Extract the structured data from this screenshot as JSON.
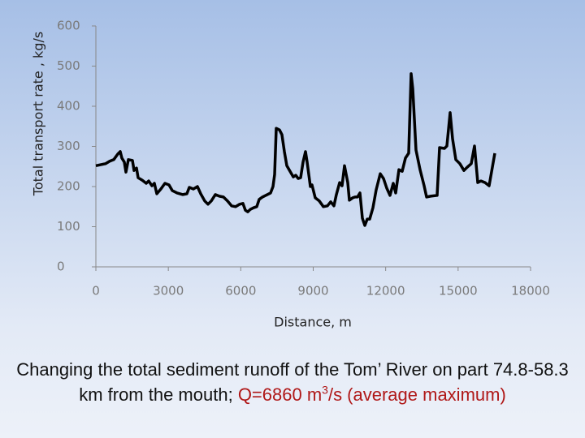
{
  "chart_data": {
    "type": "line",
    "x_label": "Distance, m",
    "y_label": "Total transport rate , kg/s",
    "xlim": [
      0,
      18000
    ],
    "xticks": [
      0,
      3000,
      6000,
      9000,
      12000,
      15000,
      18000
    ],
    "ylim": [
      0,
      600
    ],
    "yticks": [
      0,
      100,
      200,
      300,
      400,
      500,
      600
    ],
    "color": "#000000",
    "x": [
      0,
      235,
      404,
      572,
      740,
      908,
      1009,
      1077,
      1178,
      1245,
      1346,
      1514,
      1581,
      1682,
      1750,
      1918,
      2086,
      2187,
      2321,
      2422,
      2523,
      2692,
      2860,
      3028,
      3163,
      3365,
      3600,
      3768,
      3869,
      4037,
      4205,
      4340,
      4508,
      4643,
      4778,
      4946,
      5114,
      5282,
      5450,
      5618,
      5787,
      5955,
      6090,
      6191,
      6292,
      6393,
      6527,
      6662,
      6763,
      6897,
      7032,
      7234,
      7335,
      7402,
      7469,
      7604,
      7705,
      7806,
      7907,
      8041,
      8176,
      8277,
      8378,
      8479,
      8580,
      8681,
      8748,
      8882,
      8950,
      9084,
      9252,
      9421,
      9589,
      9723,
      9858,
      9959,
      10093,
      10194,
      10295,
      10430,
      10497,
      10632,
      10733,
      10834,
      10935,
      11036,
      11137,
      11238,
      11338,
      11473,
      11608,
      11776,
      11911,
      12045,
      12180,
      12314,
      12415,
      12550,
      12684,
      12819,
      12953,
      13054,
      13121,
      13256,
      13424,
      13592,
      13693,
      13861,
      14131,
      14232,
      14434,
      14535,
      14669,
      14770,
      14905,
      15073,
      15241,
      15376,
      15544,
      15678,
      15813,
      15948,
      16116,
      16284,
      16519
    ],
    "y": [
      252,
      255,
      257,
      263,
      267,
      281,
      287,
      271,
      261,
      236,
      267,
      265,
      240,
      246,
      222,
      216,
      208,
      214,
      202,
      208,
      182,
      194,
      208,
      204,
      190,
      184,
      180,
      182,
      198,
      194,
      200,
      182,
      164,
      156,
      164,
      180,
      176,
      174,
      164,
      152,
      150,
      156,
      158,
      141,
      137,
      143,
      147,
      150,
      168,
      174,
      178,
      184,
      200,
      230,
      345,
      341,
      329,
      287,
      252,
      238,
      224,
      228,
      220,
      222,
      261,
      287,
      261,
      200,
      204,
      172,
      164,
      150,
      152,
      162,
      152,
      180,
      210,
      202,
      252,
      210,
      166,
      172,
      174,
      174,
      184,
      121,
      103,
      119,
      119,
      147,
      192,
      232,
      220,
      196,
      178,
      208,
      184,
      242,
      238,
      271,
      283,
      481,
      444,
      291,
      242,
      202,
      174,
      176,
      178,
      297,
      295,
      301,
      384,
      319,
      267,
      257,
      240,
      248,
      257,
      301,
      210,
      214,
      210,
      202,
      283
    ]
  },
  "caption": {
    "text": "Changing the total sediment runoff of the Tom’ River on part 74.8-58.3 km from the mouth; ",
    "highlight": "Q=6860 m",
    "superscript": "3",
    "highlight_end": "/s (average maximum)"
  }
}
